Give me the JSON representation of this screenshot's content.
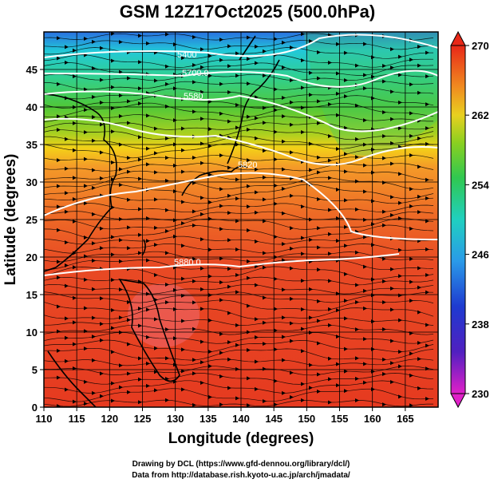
{
  "title": "GSM 12Z17Oct2025 (500.0hPa)",
  "xlabel": "Longitude (degrees)",
  "ylabel": "Latitude  (degrees)",
  "x_ticks": [
    "110",
    "115",
    "120",
    "125",
    "130",
    "135",
    "140",
    "145",
    "150",
    "155",
    "160",
    "165"
  ],
  "y_ticks": [
    "0",
    "5",
    "10",
    "15",
    "20",
    "25",
    "30",
    "35",
    "40",
    "45"
  ],
  "colorbar_ticks": [
    "270",
    "262",
    "254",
    "246",
    "238",
    "230"
  ],
  "contour_labels": [
    "5880.0",
    "5700.0",
    "5400",
    "5580",
    "5820",
    "5880.0"
  ],
  "credits": {
    "line1": "Drawing by DCL (https://www.gfd-dennou.org/library/dcl/)",
    "line2": "Data from http://database.rish.kyoto-u.ac.jp/arch/jmadata/"
  },
  "chart_data": {
    "type": "heatmap",
    "title": "GSM 12Z17Oct2025 (500.0hPa)",
    "xlabel": "Longitude (degrees)",
    "ylabel": "Latitude  (degrees)",
    "xlim": [
      110,
      170
    ],
    "ylim": [
      0,
      50
    ],
    "colorbar_range": [
      230,
      270
    ],
    "colorbar_ticks": [
      270,
      262,
      254,
      246,
      238,
      230
    ],
    "overlays": [
      "geopotential height contours (white)",
      "wind streamlines (black)",
      "coastlines",
      "lat/lon grid"
    ],
    "contour_levels_shown": [
      5400,
      5580,
      5700,
      5820,
      5880
    ]
  },
  "colors": {
    "frame": "#000000",
    "contour": "#ffffff",
    "streamline": "#000000"
  }
}
